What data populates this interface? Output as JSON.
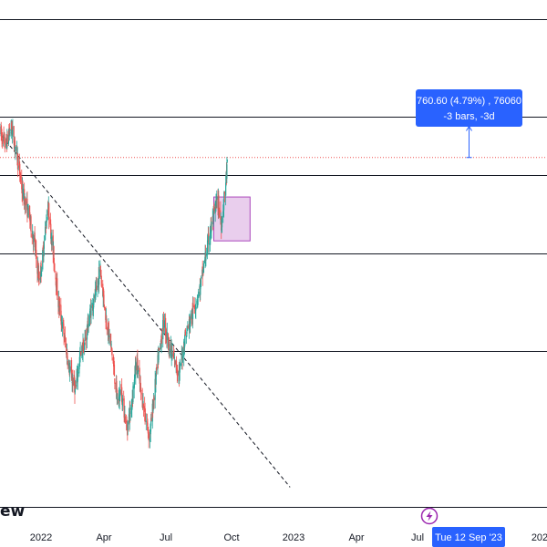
{
  "logo": {
    "text": "ew"
  },
  "date_badge": {
    "label": "Tue 12 Sep '23"
  },
  "measure_tooltip": {
    "line1": "760.60 (4.79%) , 76060",
    "line2": "-3 bars, -3d"
  },
  "colors": {
    "up": "#26a69a",
    "down": "#ef5350",
    "accent": "#2962ff",
    "zone_fill": "#e1bee7",
    "zone_stroke": "#ab47bc",
    "horizontal_line": "#131722",
    "current_price_line": "#ef5350"
  },
  "chart_data": {
    "type": "candlestick",
    "time_axis": {
      "ticks": [
        "2022",
        "Apr",
        "Jul",
        "Oct",
        "2023",
        "Apr",
        "Jul",
        "202"
      ],
      "visible_range": [
        "2021-11-20",
        "2024-01-10"
      ]
    },
    "price_axis": {
      "shown": false,
      "relative_range": [
        0,
        100
      ]
    },
    "horizontal_levels": [
      92,
      72,
      60,
      44,
      24,
      -8
    ],
    "current_price_level": 63.6,
    "trendline": {
      "style": "dashed",
      "start": {
        "date": "2021-11-25",
        "value": 68
      },
      "end": {
        "date": "2024-01-05",
        "value": -4
      }
    },
    "zone": {
      "start": "2023-06-15",
      "end": "2023-09-20",
      "top": 55.5,
      "bottom": 46.5
    },
    "measure_arrow": {
      "date": "2023-09-12",
      "from": 63.6,
      "to": 70,
      "label_lines": [
        "760.60 (4.79%) , 76060",
        "-3 bars, -3d"
      ]
    },
    "price_anchors": [
      [
        "2021-11-20",
        69
      ],
      [
        "2021-12-05",
        66
      ],
      [
        "2021-12-20",
        70
      ],
      [
        "2022-01-05",
        64
      ],
      [
        "2022-01-20",
        56
      ],
      [
        "2022-02-05",
        52
      ],
      [
        "2022-02-20",
        46
      ],
      [
        "2022-03-05",
        38
      ],
      [
        "2022-03-15",
        44
      ],
      [
        "2022-03-28",
        54
      ],
      [
        "2022-04-10",
        45
      ],
      [
        "2022-04-25",
        34
      ],
      [
        "2022-05-10",
        27
      ],
      [
        "2022-05-25",
        20
      ],
      [
        "2022-06-10",
        16
      ],
      [
        "2022-06-20",
        22
      ],
      [
        "2022-07-05",
        26
      ],
      [
        "2022-07-20",
        32
      ],
      [
        "2022-08-05",
        36
      ],
      [
        "2022-08-15",
        41
      ],
      [
        "2022-08-30",
        31
      ],
      [
        "2022-09-15",
        24
      ],
      [
        "2022-10-01",
        13
      ],
      [
        "2022-10-10",
        16
      ],
      [
        "2022-10-25",
        8
      ],
      [
        "2022-11-05",
        12
      ],
      [
        "2022-11-20",
        22
      ],
      [
        "2022-12-01",
        16
      ],
      [
        "2022-12-15",
        10
      ],
      [
        "2022-12-25",
        6
      ],
      [
        "2023-01-05",
        14
      ],
      [
        "2023-01-15",
        21
      ],
      [
        "2023-02-01",
        30
      ],
      [
        "2023-02-15",
        25
      ],
      [
        "2023-03-01",
        22
      ],
      [
        "2023-03-15",
        19
      ],
      [
        "2023-03-30",
        27
      ],
      [
        "2023-04-20",
        32
      ],
      [
        "2023-05-10",
        37
      ],
      [
        "2023-05-25",
        44
      ],
      [
        "2023-06-10",
        50
      ],
      [
        "2023-06-25",
        55
      ],
      [
        "2023-07-05",
        50
      ],
      [
        "2023-07-15",
        57
      ],
      [
        "2023-07-22",
        63
      ]
    ]
  }
}
